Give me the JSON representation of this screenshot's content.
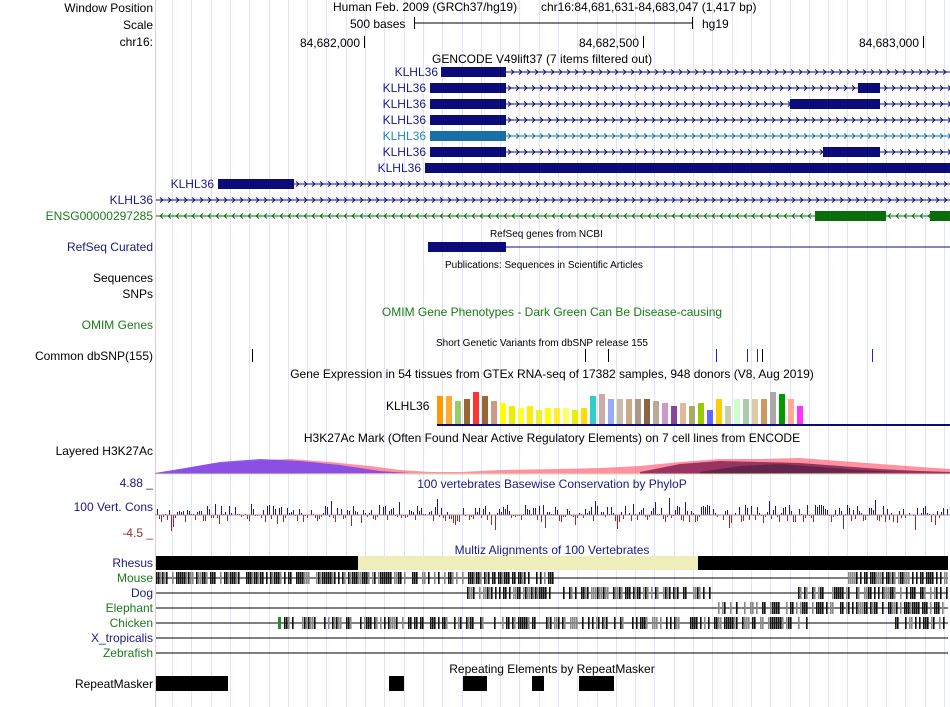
{
  "header": {
    "window_position_label": "Window Position",
    "scale_label": "Scale",
    "chrom_label": "chr16:",
    "assembly_text": "Human Feb. 2009 (GRCh37/hg19)",
    "position_text": "chr16:84,681,631-84,683,047 (1,417 bp)",
    "scale_text": "500 bases",
    "scale_db": "hg19",
    "ticks": [
      "84,682,000",
      "84,682,500",
      "84,683,000"
    ]
  },
  "tracks": {
    "gencode_title": "GENCODE V49lift37 (7 items filtered out)",
    "gencode_items": [
      "KLHL36",
      "KLHL36",
      "KLHL36",
      "KLHL36",
      "KLHL36",
      "KLHL36",
      "KLHL36",
      "KLHL36",
      "KLHL36",
      "ENSG00000297285"
    ],
    "refseq_label": "RefSeq Curated",
    "refseq_title": "RefSeq genes from NCBI",
    "publications_title": "Publications: Sequences in Scientific Articles",
    "sequences_label": "Sequences",
    "snps_label": "SNPs",
    "omim_title": "OMIM Gene Phenotypes - Dark Green Can Be Disease-causing",
    "omim_label": "OMIM Genes",
    "dbsnp_title": "Short Genetic Variants from dbSNP release 155",
    "dbsnp_label": "Common dbSNP(155)",
    "gtex_title": "Gene Expression in 54 tissues from GTEx RNA-seq of 17382 samples, 948 donors (V8, Aug 2019)",
    "gtex_gene": "KLHL36",
    "h3k27ac_label": "Layered H3K27Ac",
    "h3k27ac_title": "H3K27Ac Mark (Often Found Near Active Regulatory Elements) on 7 cell lines from ENCODE",
    "cons_max": "4.88 _",
    "cons_min": "-4.5 _",
    "cons_label": "100 Vert. Cons",
    "cons_title": "100 vertebrates Basewise Conservation by PhyloP",
    "multiz_title": "Multiz Alignments of 100 Vertebrates",
    "species": [
      "Rhesus",
      "Mouse",
      "Dog",
      "Elephant",
      "Chicken",
      "X_tropicalis",
      "Zebrafish"
    ],
    "repeat_title": "Repeating Elements by RepeatMasker",
    "repeat_label": "RepeatMasker"
  },
  "colors": {
    "gene_navy": "#0c0c78",
    "gene_light": "#1a6fa8",
    "gene_green": "#0a6e0a",
    "cons_blue": "#1a1a80",
    "cons_red": "#9a2a2a"
  },
  "gtex_bar_colors": [
    "#ff9900",
    "#ffaa33",
    "#99cc66",
    "#996633",
    "#ff3333",
    "#996633",
    "#cc9988",
    "#ffff00",
    "#eeee00",
    "#ffff33",
    "#ffee00",
    "#eeee33",
    "#ffff00",
    "#ffee33",
    "#ffff66",
    "#eeee00",
    "#ffdd00",
    "#33cccc",
    "#ccaaaa",
    "#99aaff",
    "#ccbbaa",
    "#ccaa88",
    "#aa9988",
    "#886644",
    "#bbaa99",
    "#cc99cc",
    "#884499",
    "#ddbb99",
    "#aaaa66",
    "#99cc00",
    "#6666ff",
    "#ffcc00",
    "#ccccaa",
    "#ccffcc",
    "#aaccaa",
    "#ddccaa",
    "#cc9966",
    "#aaaaaa",
    "#009900",
    "#ffaa99",
    "#ff33ff"
  ],
  "gtex_values": [
    0.6,
    0.6,
    0.5,
    0.55,
    0.7,
    0.6,
    0.5,
    0.45,
    0.4,
    0.35,
    0.4,
    0.3,
    0.35,
    0.35,
    0.35,
    0.3,
    0.35,
    0.6,
    0.65,
    0.55,
    0.55,
    0.55,
    0.55,
    0.55,
    0.5,
    0.45,
    0.4,
    0.45,
    0.4,
    0.45,
    0.3,
    0.55,
    0.4,
    0.55,
    0.55,
    0.55,
    0.55,
    0.7,
    0.65,
    0.55,
    0.4
  ]
}
